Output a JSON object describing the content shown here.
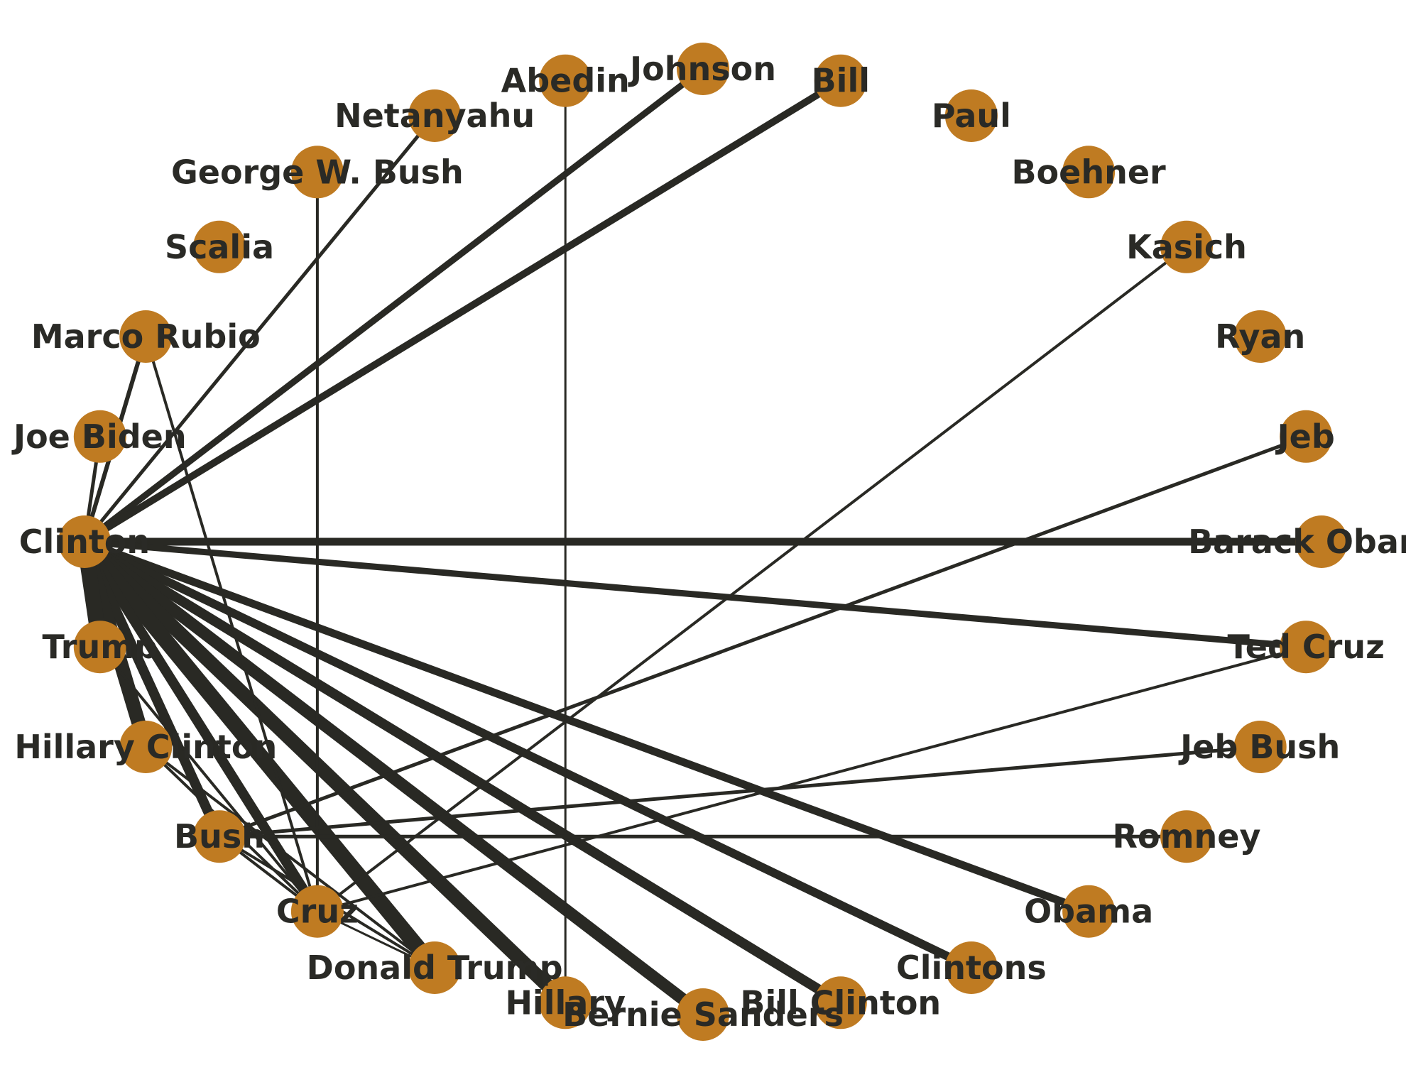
{
  "graph": {
    "node_color": "#bf7b22",
    "edge_color": "#292924",
    "nodes": [
      {
        "id": "clinton",
        "label": "Clinton"
      },
      {
        "id": "joe-biden",
        "label": "Joe Biden"
      },
      {
        "id": "marco-rubio",
        "label": "Marco Rubio"
      },
      {
        "id": "scalia",
        "label": "Scalia"
      },
      {
        "id": "george-w-bush",
        "label": "George W. Bush"
      },
      {
        "id": "netanyahu",
        "label": "Netanyahu"
      },
      {
        "id": "abedin",
        "label": "Abedin"
      },
      {
        "id": "johnson",
        "label": "Johnson"
      },
      {
        "id": "bill",
        "label": "Bill"
      },
      {
        "id": "paul",
        "label": "Paul"
      },
      {
        "id": "boehner",
        "label": "Boehner"
      },
      {
        "id": "kasich",
        "label": "Kasich"
      },
      {
        "id": "ryan",
        "label": "Ryan"
      },
      {
        "id": "jeb",
        "label": "Jeb"
      },
      {
        "id": "barack-obama",
        "label": "Barack Obama"
      },
      {
        "id": "ted-cruz",
        "label": "Ted Cruz"
      },
      {
        "id": "jeb-bush",
        "label": "Jeb Bush"
      },
      {
        "id": "romney",
        "label": "Romney"
      },
      {
        "id": "obama",
        "label": "Obama"
      },
      {
        "id": "clintons",
        "label": "Clintons"
      },
      {
        "id": "bill-clinton",
        "label": "Bill Clinton"
      },
      {
        "id": "bernie-sanders",
        "label": "Bernie Sanders"
      },
      {
        "id": "hillary",
        "label": "Hillary"
      },
      {
        "id": "donald-trump",
        "label": "Donald Trump"
      },
      {
        "id": "cruz",
        "label": "Cruz"
      },
      {
        "id": "bush",
        "label": "Bush"
      },
      {
        "id": "hillary-clinton",
        "label": "Hillary Clinton"
      },
      {
        "id": "trump",
        "label": "Trump"
      }
    ],
    "edges": [
      {
        "source": "clinton",
        "target": "joe-biden",
        "weight": 5
      },
      {
        "source": "clinton",
        "target": "marco-rubio",
        "weight": 6
      },
      {
        "source": "clinton",
        "target": "netanyahu",
        "weight": 5
      },
      {
        "source": "clinton",
        "target": "johnson",
        "weight": 9
      },
      {
        "source": "clinton",
        "target": "bill",
        "weight": 10
      },
      {
        "source": "clinton",
        "target": "barack-obama",
        "weight": 11
      },
      {
        "source": "clinton",
        "target": "ted-cruz",
        "weight": 9
      },
      {
        "source": "clinton",
        "target": "obama",
        "weight": 11
      },
      {
        "source": "clinton",
        "target": "clintons",
        "weight": 12
      },
      {
        "source": "clinton",
        "target": "bill-clinton",
        "weight": 14
      },
      {
        "source": "clinton",
        "target": "bernie-sanders",
        "weight": 17
      },
      {
        "source": "clinton",
        "target": "hillary",
        "weight": 20
      },
      {
        "source": "clinton",
        "target": "donald-trump",
        "weight": 22
      },
      {
        "source": "clinton",
        "target": "cruz",
        "weight": 14
      },
      {
        "source": "clinton",
        "target": "bush",
        "weight": 14
      },
      {
        "source": "clinton",
        "target": "hillary-clinton",
        "weight": 20
      },
      {
        "source": "clinton",
        "target": "trump",
        "weight": 22
      },
      {
        "source": "marco-rubio",
        "target": "cruz",
        "weight": 4
      },
      {
        "source": "george-w-bush",
        "target": "cruz",
        "weight": 4
      },
      {
        "source": "abedin",
        "target": "hillary",
        "weight": 3
      },
      {
        "source": "kasich",
        "target": "cruz",
        "weight": 4
      },
      {
        "source": "jeb",
        "target": "bush",
        "weight": 5
      },
      {
        "source": "ted-cruz",
        "target": "cruz",
        "weight": 4
      },
      {
        "source": "jeb-bush",
        "target": "bush",
        "weight": 5
      },
      {
        "source": "romney",
        "target": "bush",
        "weight": 5
      },
      {
        "source": "bush",
        "target": "cruz",
        "weight": 4
      },
      {
        "source": "bush",
        "target": "donald-trump",
        "weight": 4
      },
      {
        "source": "cruz",
        "target": "donald-trump",
        "weight": 3
      },
      {
        "source": "trump",
        "target": "cruz",
        "weight": 4
      },
      {
        "source": "hillary-clinton",
        "target": "cruz",
        "weight": 4
      },
      {
        "source": "hillary-clinton",
        "target": "donald-trump",
        "weight": 4
      }
    ]
  }
}
